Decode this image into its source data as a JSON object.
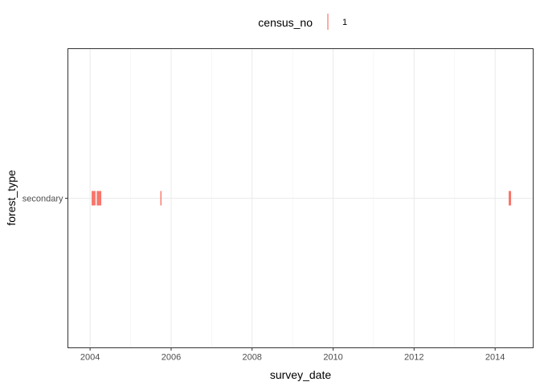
{
  "chart_data": {
    "type": "scatter",
    "mark": "vertical-tick",
    "xlabel": "survey_date",
    "ylabel": "forest_type",
    "x_type": "date",
    "xlim": [
      "2003-06-15",
      "2014-12-10"
    ],
    "x_ticks": [
      "2004",
      "2006",
      "2008",
      "2010",
      "2012",
      "2014"
    ],
    "categories": [
      "secondary"
    ],
    "grid": true,
    "legend": {
      "title": "census_no",
      "position": "top",
      "entries": [
        {
          "label": "1",
          "color": "#F8766D"
        }
      ]
    },
    "series": [
      {
        "name": "1",
        "color": "#F8766D",
        "points": [
          {
            "x": "2004-01-20",
            "y": "secondary"
          },
          {
            "x": "2004-01-26",
            "y": "secondary"
          },
          {
            "x": "2004-02-02",
            "y": "secondary"
          },
          {
            "x": "2004-02-08",
            "y": "secondary"
          },
          {
            "x": "2004-02-14",
            "y": "secondary"
          },
          {
            "x": "2004-03-06",
            "y": "secondary"
          },
          {
            "x": "2004-03-12",
            "y": "secondary"
          },
          {
            "x": "2004-03-18",
            "y": "secondary"
          },
          {
            "x": "2004-03-24",
            "y": "secondary"
          },
          {
            "x": "2004-03-30",
            "y": "secondary"
          },
          {
            "x": "2004-04-06",
            "y": "secondary"
          },
          {
            "x": "2005-10-01",
            "y": "secondary"
          },
          {
            "x": "2014-05-08",
            "y": "secondary"
          },
          {
            "x": "2014-05-14",
            "y": "secondary"
          },
          {
            "x": "2014-05-20",
            "y": "secondary"
          }
        ]
      }
    ]
  }
}
